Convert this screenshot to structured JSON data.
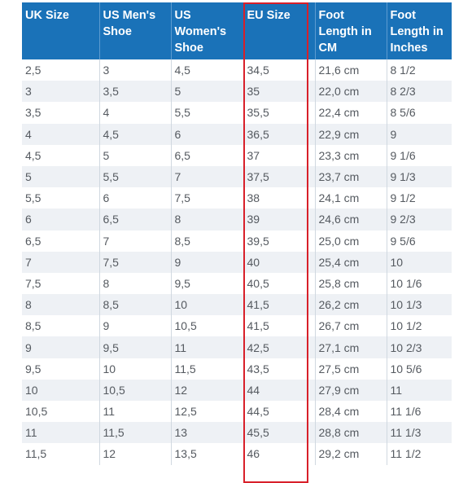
{
  "table": {
    "headers": [
      "UK Size",
      "US Men's Shoe",
      "US Women's Shoe",
      "EU Size",
      "Foot Length in CM",
      "Foot Length in Inches"
    ],
    "rows": [
      [
        "2,5",
        "3",
        "4,5",
        "34,5",
        "21,6 cm",
        "8 1/2"
      ],
      [
        "3",
        "3,5",
        "5",
        "35",
        "22,0 cm",
        "8 2/3"
      ],
      [
        "3,5",
        "4",
        "5,5",
        "35,5",
        "22,4 cm",
        "8 5/6"
      ],
      [
        "4",
        "4,5",
        "6",
        "36,5",
        "22,9 cm",
        "9"
      ],
      [
        "4,5",
        "5",
        "6,5",
        "37",
        "23,3 cm",
        "9 1/6"
      ],
      [
        "5",
        "5,5",
        "7",
        "37,5",
        "23,7 cm",
        "9 1/3"
      ],
      [
        "5,5",
        "6",
        "7,5",
        "38",
        "24,1 cm",
        "9 1/2"
      ],
      [
        "6",
        "6,5",
        "8",
        "39",
        "24,6 cm",
        "9 2/3"
      ],
      [
        "6,5",
        "7",
        "8,5",
        "39,5",
        "25,0 cm",
        "9 5/6"
      ],
      [
        "7",
        "7,5",
        "9",
        "40",
        "25,4 cm",
        "10"
      ],
      [
        "7,5",
        "8",
        "9,5",
        "40,5",
        "25,8 cm",
        "10 1/6"
      ],
      [
        "8",
        "8,5",
        "10",
        "41,5",
        "26,2 cm",
        "10 1/3"
      ],
      [
        "8,5",
        "9",
        "10,5",
        "41,5",
        "26,7 cm",
        "10 1/2"
      ],
      [
        "9",
        "9,5",
        "11",
        "42,5",
        "27,1 cm",
        "10 2/3"
      ],
      [
        "9,5",
        "10",
        "11,5",
        "43,5",
        "27,5 cm",
        "10 5/6"
      ],
      [
        "10",
        "10,5",
        "12",
        "44",
        "27,9 cm",
        "11"
      ],
      [
        "10,5",
        "11",
        "12,5",
        "44,5",
        "28,4 cm",
        "11 1/6"
      ],
      [
        "11",
        "11,5",
        "13",
        "45,5",
        "28,8 cm",
        "11 1/3"
      ],
      [
        "11,5",
        "12",
        "13,5",
        "46",
        "29,2 cm",
        "11 1/2"
      ]
    ]
  },
  "colors": {
    "header_bg": "#1a72b8",
    "header_text": "#ffffff",
    "stripe": "#eef1f5",
    "highlight_border": "#d8202a"
  }
}
